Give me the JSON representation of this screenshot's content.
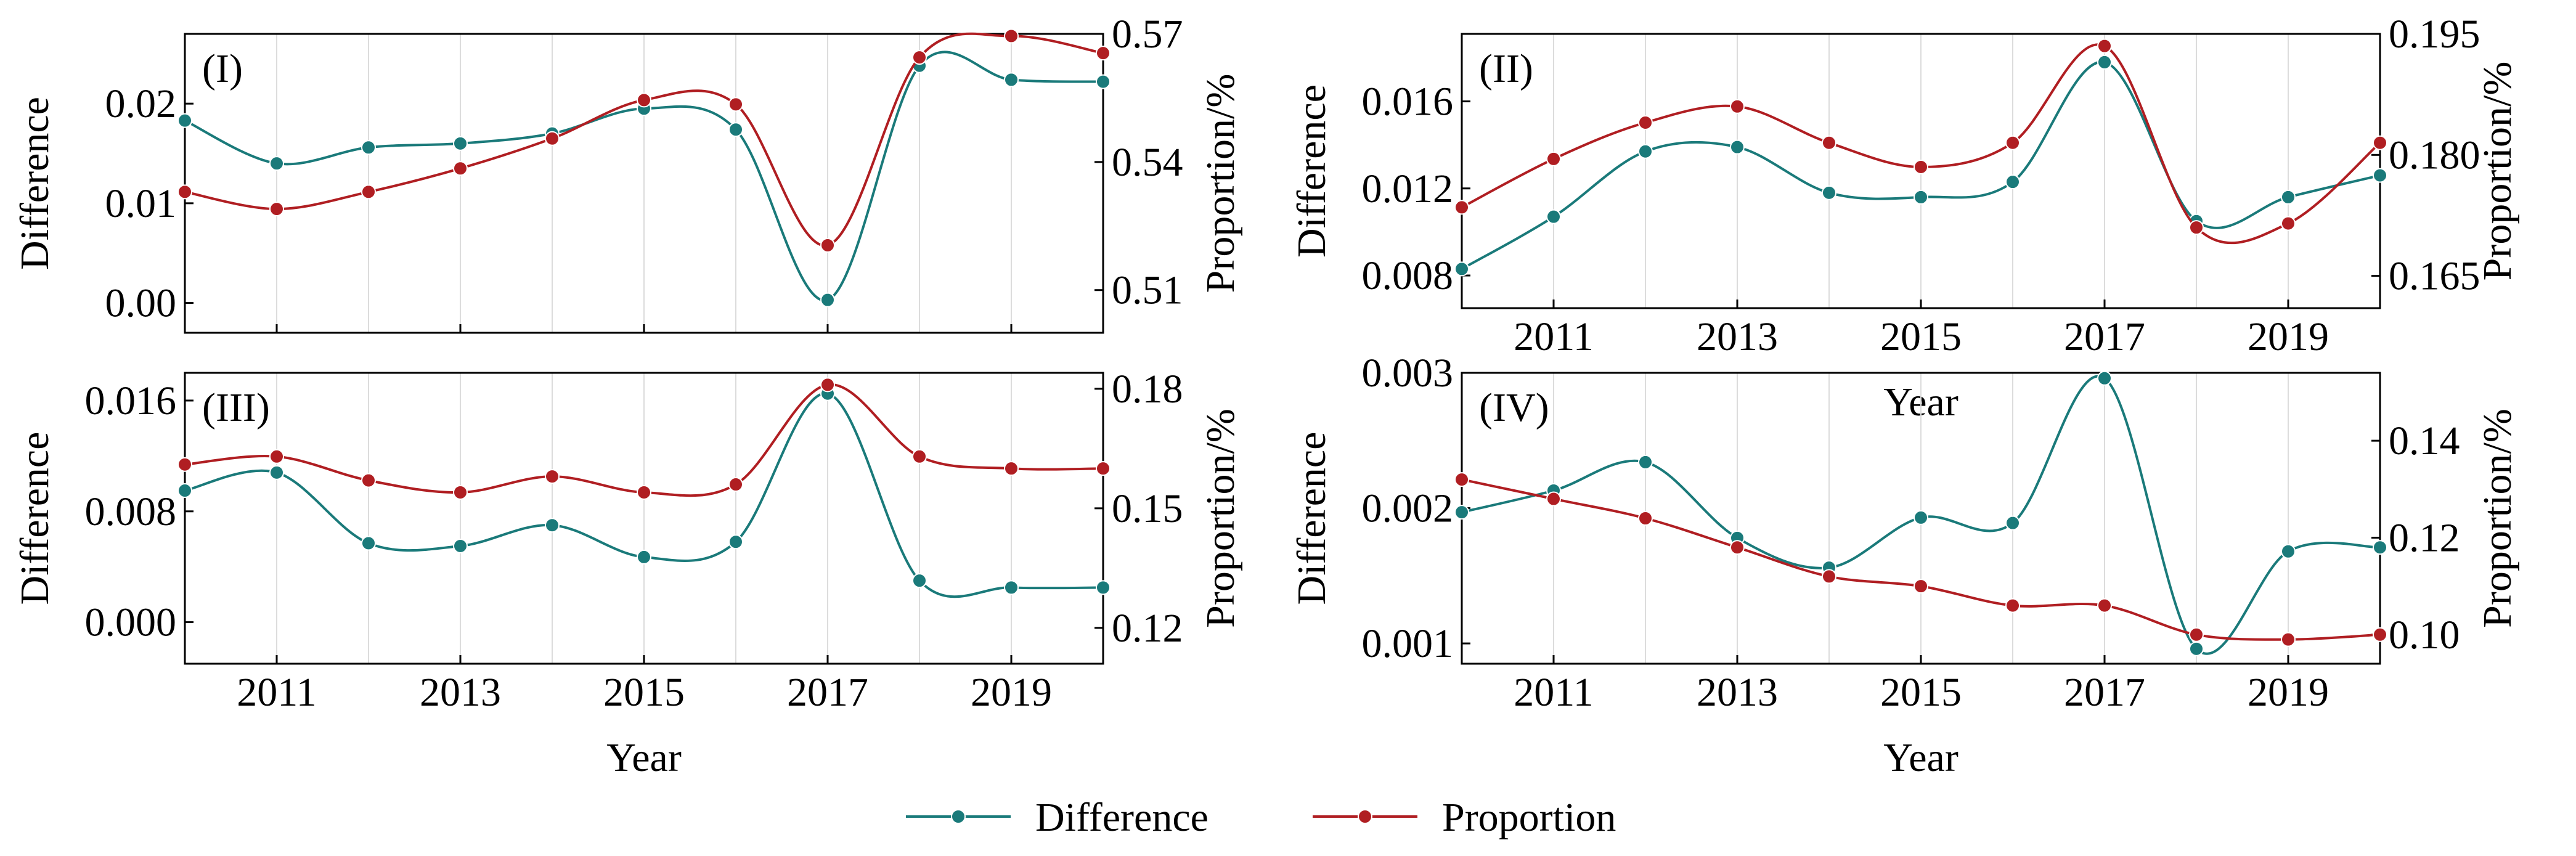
{
  "legend": {
    "difference_label": "Difference",
    "proportion_label": "Proportion"
  },
  "colors": {
    "difference": "#1a7a7a",
    "proportion": "#b01e22",
    "grid": "#dcdcdc",
    "axis": "#000000"
  },
  "chart_data": [
    {
      "type": "line",
      "panel_label": "(I)",
      "x": [
        2010,
        2011,
        2012,
        2013,
        2014,
        2015,
        2016,
        2017,
        2018,
        2019,
        2020
      ],
      "xlim": [
        2010,
        2020
      ],
      "xticks": [
        2011,
        2013,
        2015,
        2017,
        2019
      ],
      "xlabel": "",
      "ylabel_left": "Difference",
      "ylabel_right": "Proportion/%",
      "left_lim": [
        -0.003,
        0.027
      ],
      "left_ticks": [
        0.0,
        0.01,
        0.02
      ],
      "left_tick_labels": [
        "0.00",
        "0.01",
        "0.02"
      ],
      "right_lim": [
        0.5,
        0.57
      ],
      "right_ticks": [
        0.51,
        0.54,
        0.57
      ],
      "right_tick_labels": [
        "0.51",
        "0.54",
        "0.57"
      ],
      "series": [
        {
          "name": "Difference",
          "axis": "left",
          "values": [
            0.0183,
            0.014,
            0.0156,
            0.016,
            0.017,
            0.0195,
            0.0174,
            0.0003,
            0.0238,
            0.0224,
            0.0222
          ]
        },
        {
          "name": "Proportion",
          "axis": "right",
          "values": [
            0.533,
            0.529,
            0.533,
            0.5385,
            0.5455,
            0.5545,
            0.5535,
            0.5205,
            0.5645,
            0.5695,
            0.5655
          ]
        }
      ]
    },
    {
      "type": "line",
      "panel_label": "(II)",
      "x": [
        2010,
        2011,
        2012,
        2013,
        2014,
        2015,
        2016,
        2017,
        2018,
        2019,
        2020
      ],
      "xlim": [
        2010,
        2020
      ],
      "xticks": [
        2011,
        2013,
        2015,
        2017,
        2019
      ],
      "xlabel": "Year",
      "ylabel_left": "Difference",
      "ylabel_right": "Proportion/%",
      "left_lim": [
        0.0065,
        0.0191
      ],
      "left_ticks": [
        0.008,
        0.012,
        0.016
      ],
      "left_tick_labels": [
        "0.008",
        "0.012",
        "0.016"
      ],
      "right_lim": [
        0.161,
        0.195
      ],
      "right_ticks": [
        0.165,
        0.18,
        0.195
      ],
      "right_tick_labels": [
        "0.165",
        "0.180",
        "0.195"
      ],
      "series": [
        {
          "name": "Difference",
          "axis": "left",
          "values": [
            0.0083,
            0.0107,
            0.0137,
            0.0139,
            0.0118,
            0.0116,
            0.0123,
            0.0178,
            0.0105,
            0.0116,
            0.0126
          ]
        },
        {
          "name": "Proportion",
          "axis": "right",
          "values": [
            0.1735,
            0.1795,
            0.184,
            0.186,
            0.1815,
            0.1785,
            0.1815,
            0.1935,
            0.171,
            0.1715,
            0.1815
          ]
        }
      ]
    },
    {
      "type": "line",
      "panel_label": "(III)",
      "x": [
        2010,
        2011,
        2012,
        2013,
        2014,
        2015,
        2016,
        2017,
        2018,
        2019,
        2020
      ],
      "xlim": [
        2010,
        2020
      ],
      "xticks": [
        2011,
        2013,
        2015,
        2017,
        2019
      ],
      "xlabel": "Year",
      "ylabel_left": "Difference",
      "ylabel_right": "Proportion/%",
      "left_lim": [
        -0.003,
        0.018
      ],
      "left_ticks": [
        0.0,
        0.008,
        0.016
      ],
      "left_tick_labels": [
        "0.000",
        "0.008",
        "0.016"
      ],
      "right_lim": [
        0.111,
        0.184
      ],
      "right_ticks": [
        0.12,
        0.15,
        0.18
      ],
      "right_tick_labels": [
        "0.12",
        "0.15",
        "0.18"
      ],
      "series": [
        {
          "name": "Difference",
          "axis": "left",
          "values": [
            0.0095,
            0.0108,
            0.0057,
            0.0055,
            0.007,
            0.0047,
            0.0058,
            0.0165,
            0.003,
            0.0025,
            0.0025
          ]
        },
        {
          "name": "Proportion",
          "axis": "right",
          "values": [
            0.161,
            0.163,
            0.157,
            0.154,
            0.158,
            0.154,
            0.156,
            0.181,
            0.163,
            0.16,
            0.16
          ]
        }
      ]
    },
    {
      "type": "line",
      "panel_label": "(IV)",
      "x": [
        2010,
        2011,
        2012,
        2013,
        2014,
        2015,
        2016,
        2017,
        2018,
        2019,
        2020
      ],
      "xlim": [
        2010,
        2020
      ],
      "xticks": [
        2011,
        2013,
        2015,
        2017,
        2019
      ],
      "xlabel": "Year",
      "ylabel_left": "Difference",
      "ylabel_right": "Proportion/%",
      "left_lim": [
        0.00085,
        0.003
      ],
      "left_ticks": [
        0.001,
        0.002,
        0.003
      ],
      "left_tick_labels": [
        "0.001",
        "0.002",
        "0.003"
      ],
      "right_lim": [
        0.094,
        0.154
      ],
      "right_ticks": [
        0.1,
        0.12,
        0.14
      ],
      "right_tick_labels": [
        "0.10",
        "0.12",
        "0.14"
      ],
      "series": [
        {
          "name": "Difference",
          "axis": "left",
          "values": [
            0.00197,
            0.00213,
            0.00234,
            0.00178,
            0.00156,
            0.00193,
            0.00189,
            0.00296,
            0.00096,
            0.00168,
            0.00171
          ]
        },
        {
          "name": "Proportion",
          "axis": "right",
          "values": [
            0.132,
            0.128,
            0.124,
            0.118,
            0.112,
            0.11,
            0.106,
            0.106,
            0.1,
            0.099,
            0.1
          ]
        }
      ]
    }
  ]
}
